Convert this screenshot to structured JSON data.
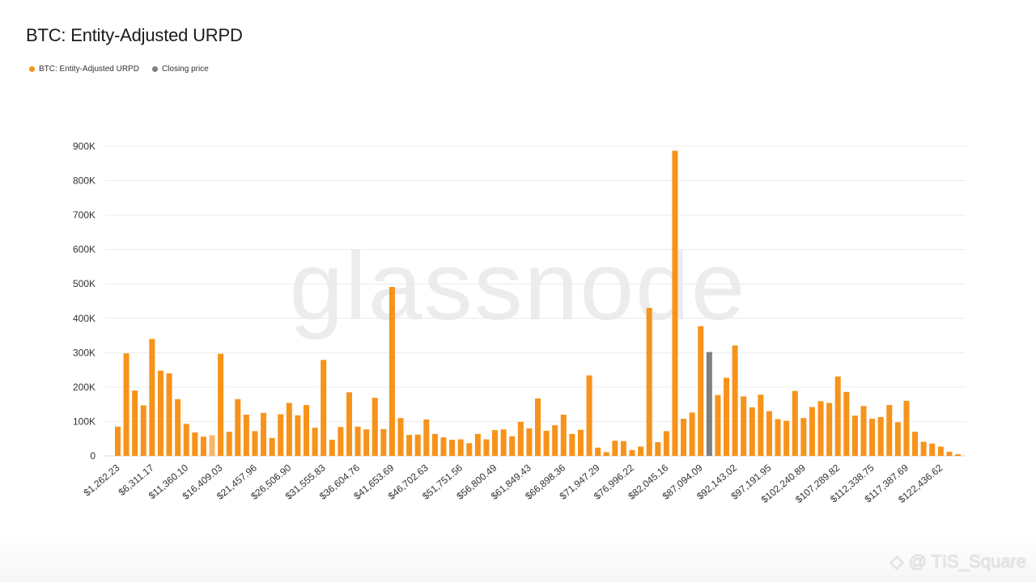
{
  "title": "BTC: Entity-Adjusted URPD",
  "legend": [
    {
      "label": "BTC: Entity-Adjusted URPD",
      "color": "#f7931a"
    },
    {
      "label": "Closing price",
      "color": "#7f7f7f"
    }
  ],
  "watermark": "glassnode",
  "footer_handle": "@ TIS_Square",
  "colors": {
    "bar": "#f7931a",
    "bar_light": "#f9b66a",
    "closing": "#7f7f7f",
    "grid": "#ececec"
  },
  "chart_data": {
    "type": "bar",
    "title": "BTC: Entity-Adjusted URPD",
    "xlabel": "",
    "ylabel": "",
    "ylim": [
      0,
      900000
    ],
    "yticks": [
      0,
      100000,
      200000,
      300000,
      400000,
      500000,
      600000,
      700000,
      800000,
      900000
    ],
    "ytick_labels": [
      "0",
      "100K",
      "200K",
      "300K",
      "400K",
      "500K",
      "600K",
      "700K",
      "800K",
      "900K"
    ],
    "xtick_labels": [
      "$1,262.23",
      "$6,311.17",
      "$11,360.10",
      "$16,409.03",
      "$21,457.96",
      "$26,506.90",
      "$31,555.83",
      "$36,604.76",
      "$41,653.69",
      "$46,702.63",
      "$51,751.56",
      "$56,800.49",
      "$61,849.43",
      "$66,898.36",
      "$71,947.29",
      "$76,996.22",
      "$82,045.16",
      "$87,094.09",
      "$92,143.02",
      "$97,191.95",
      "$102,240.89",
      "$107,289.82",
      "$112,338.75",
      "$117,387.69",
      "$122,436.62"
    ],
    "xtick_every": 4,
    "grid": true,
    "legend_position": "top-left",
    "closing_price_bin_index": 69,
    "highlighted_bin_index": 11,
    "series": [
      {
        "name": "BTC: Entity-Adjusted URPD",
        "values": [
          85000,
          298000,
          190000,
          147000,
          340000,
          248000,
          240000,
          165000,
          93000,
          68000,
          56000,
          60000,
          297000,
          70000,
          165000,
          120000,
          72000,
          125000,
          52000,
          121000,
          154000,
          118000,
          148000,
          82000,
          279000,
          47000,
          84000,
          185000,
          85000,
          77000,
          169000,
          78000,
          491000,
          110000,
          61000,
          62000,
          106000,
          64000,
          54000,
          47000,
          48000,
          37000,
          64000,
          48000,
          75000,
          77000,
          57000,
          99000,
          80000,
          167000,
          73000,
          89000,
          120000,
          64000,
          76000,
          234000,
          24000,
          11000,
          44000,
          43000,
          17000,
          27000,
          430000,
          40000,
          72000,
          887000,
          108000,
          126000,
          377000,
          302000,
          177000,
          227000,
          321000,
          173000,
          141000,
          178000,
          130000,
          107000,
          102000,
          189000,
          110000,
          142000,
          159000,
          154000,
          231000,
          186000,
          117000,
          145000,
          108000,
          113000,
          148000,
          98000,
          160000,
          70000,
          41000,
          36000,
          27000,
          12000,
          5000
        ]
      }
    ]
  }
}
